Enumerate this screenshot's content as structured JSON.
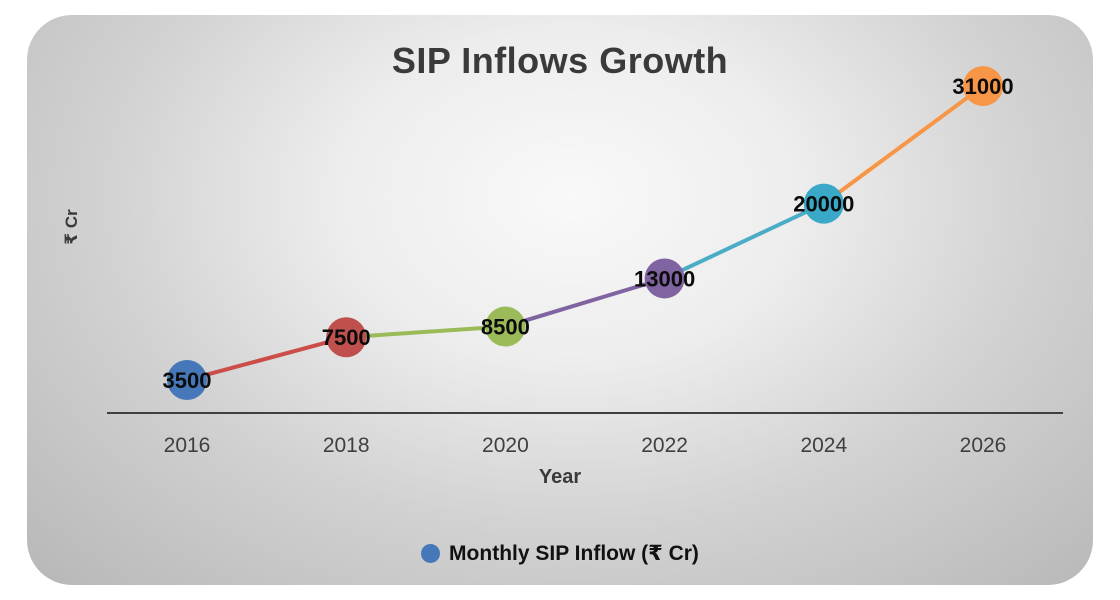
{
  "page": {
    "title": "SIP Inflows Growth"
  },
  "chart_data": {
    "type": "line",
    "title": "SIP Inflows Growth",
    "xlabel": "Year",
    "ylabel": "₹ Cr",
    "categories": [
      "2016",
      "2018",
      "2020",
      "2022",
      "2024",
      "2026"
    ],
    "series": [
      {
        "name": "Monthly SIP Inflow (₹ Cr)",
        "values": [
          3500,
          7500,
          8500,
          13000,
          20000,
          31000
        ]
      }
    ],
    "point_colors": [
      "#4678b9",
      "#c0504d",
      "#9bbb59",
      "#8064a2",
      "#3aa9c8",
      "#f79646"
    ],
    "segment_colors": [
      "#cc4e4a",
      "#9bbb59",
      "#8064a2",
      "#4bacc6",
      "#f79646"
    ],
    "ylim": [
      0,
      35000
    ],
    "grid": false,
    "legend_position": "bottom",
    "marker_style": "filled-circle",
    "data_labels_shown": true
  },
  "legend": {
    "label": "Monthly SIP Inflow (₹ Cr)",
    "marker_color": "#4678b9"
  },
  "colors": {
    "axis": "#3f3f3f",
    "tick_text": "#3f3f3f",
    "title_text": "#3a3a3a",
    "label_text": "#0b0b0b",
    "card_base": "#b7b7b7"
  }
}
